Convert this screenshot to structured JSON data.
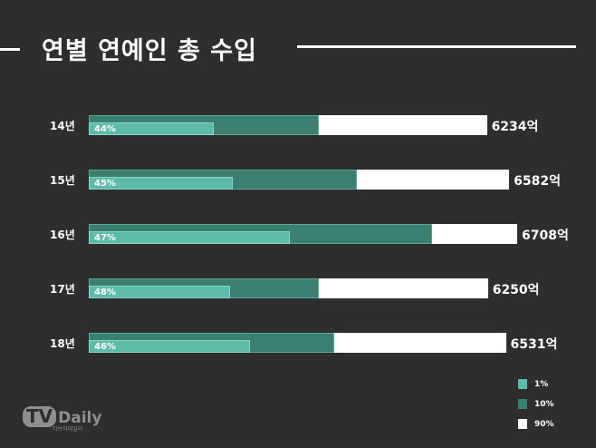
{
  "chart_data": {
    "type": "bar",
    "orientation": "horizontal",
    "title": "연별 연예인 총 수입",
    "categories": [
      "14년",
      "15년",
      "16년",
      "17년",
      "18년"
    ],
    "series": [
      {
        "name": "90%",
        "values": [
          6234,
          6582,
          6708,
          6250,
          6531
        ],
        "color": "#ffffff"
      },
      {
        "name": "10%",
        "values": [
          3600,
          4200,
          5380,
          3600,
          3840
        ],
        "color": "#3a7f70"
      },
      {
        "name": "1%",
        "values": [
          1950,
          2250,
          3150,
          2210,
          2520
        ],
        "color": "#5cbba9"
      }
    ],
    "total_labels": [
      "6234억",
      "6582억",
      "6708억",
      "6250억",
      "6531억"
    ],
    "percent_labels": [
      "44%",
      "45%",
      "47%",
      "48%",
      "46%"
    ],
    "xlim": [
      0,
      6708
    ],
    "grid": false,
    "legend_position": "bottom-right"
  },
  "legend": [
    {
      "label": "1%",
      "color": "#5cbba9"
    },
    {
      "label": "10%",
      "color": "#3a7f70"
    },
    {
      "label": "90%",
      "color": "#ffffff"
    }
  ],
  "watermark": {
    "tv": "TV",
    "daily": "Daily",
    "sub": "티브이데일리"
  }
}
